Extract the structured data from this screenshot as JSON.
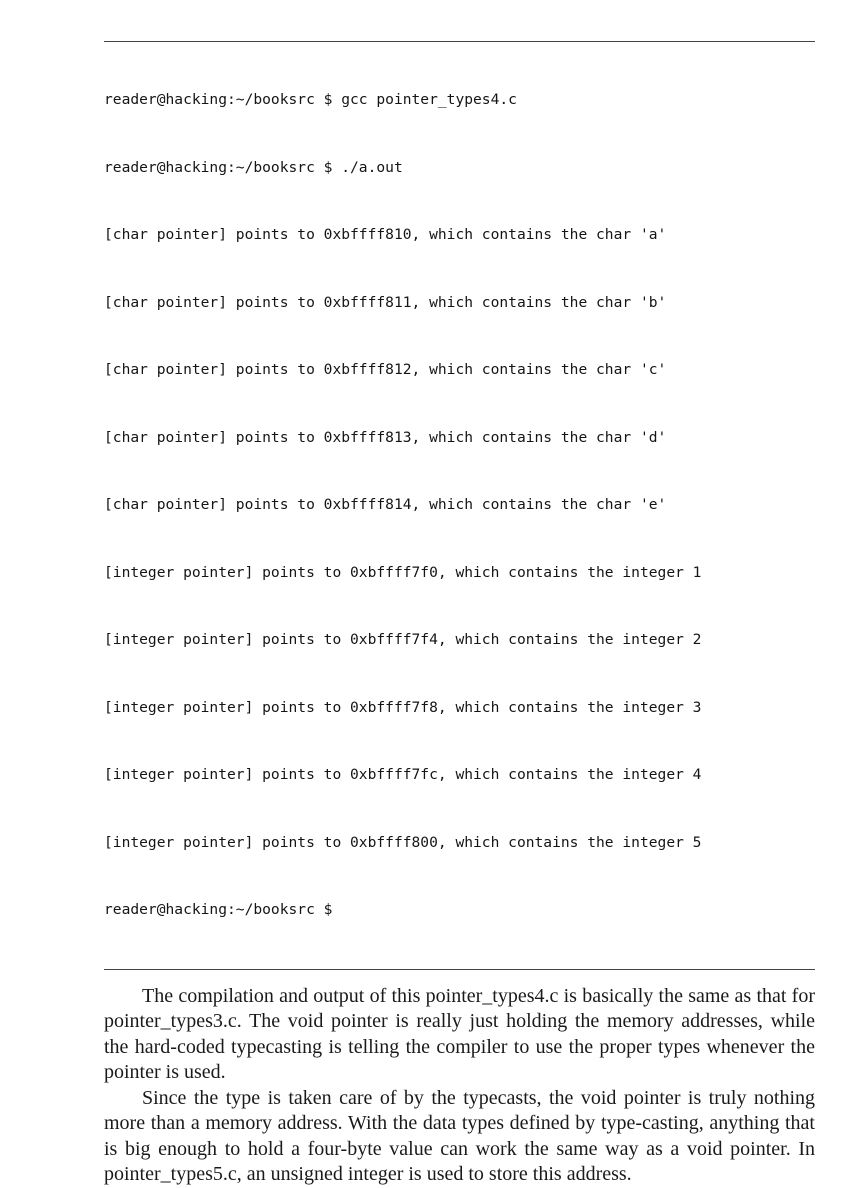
{
  "terminal_output": [
    "reader@hacking:~/booksrc $ gcc pointer_types4.c",
    "reader@hacking:~/booksrc $ ./a.out",
    "[char pointer] points to 0xbffff810, which contains the char 'a'",
    "[char pointer] points to 0xbffff811, which contains the char 'b'",
    "[char pointer] points to 0xbffff812, which contains the char 'c'",
    "[char pointer] points to 0xbffff813, which contains the char 'd'",
    "[char pointer] points to 0xbffff814, which contains the char 'e'",
    "[integer pointer] points to 0xbffff7f0, which contains the integer 1",
    "[integer pointer] points to 0xbffff7f4, which contains the integer 2",
    "[integer pointer] points to 0xbffff7f8, which contains the integer 3",
    "[integer pointer] points to 0xbffff7fc, which contains the integer 4",
    "[integer pointer] points to 0xbffff800, which contains the integer 5",
    "reader@hacking:~/booksrc $"
  ],
  "paragraphs": [
    "The compilation and output of this pointer_types4.c is basically the same as that for pointer_types3.c. The void pointer is really just holding the memory addresses, while the hard-coded typecasting is telling the compiler to use the proper types whenever the pointer is used.",
    "Since the type is taken care of by the typecasts, the void pointer is truly nothing more than a memory address. With the data types defined by type-casting, anything that is big enough to hold a four-byte value can work the same way as a void pointer. In pointer_types5.c, an unsigned integer is used to store this address."
  ]
}
